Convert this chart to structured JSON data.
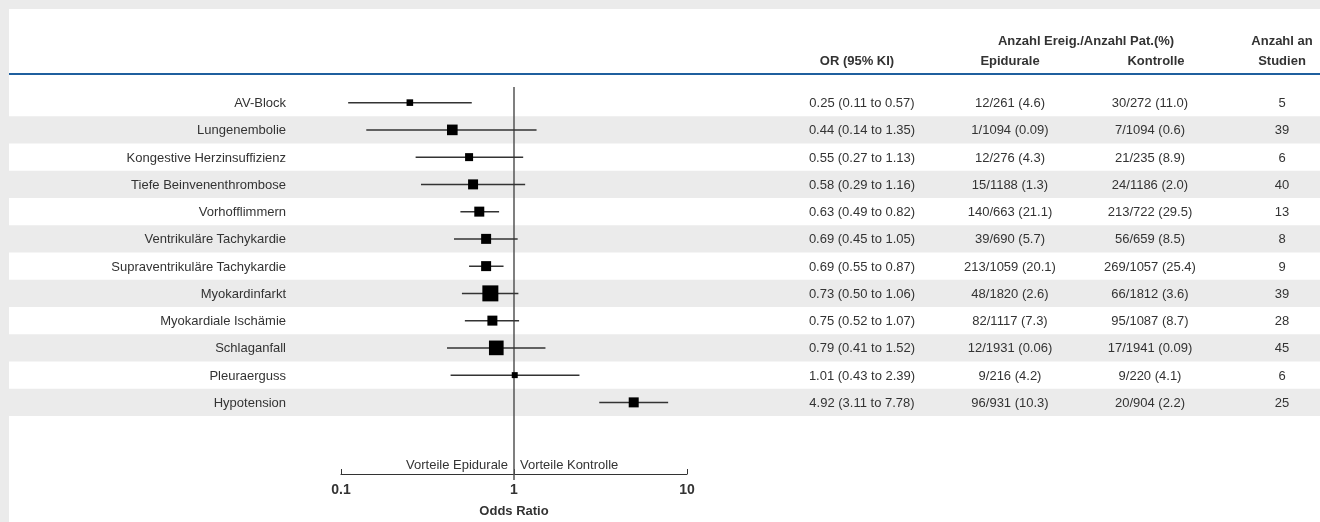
{
  "chart_data": {
    "type": "scatter",
    "orientation": "horizontal",
    "marker": "square",
    "color": "#000000",
    "log": "x",
    "xlim": [
      0.1,
      10
    ],
    "xticks": [
      0.1,
      1,
      10
    ],
    "xlabel": "Odds Ratio",
    "grid": false,
    "categories": [
      "AV-Block",
      "Lungenembolie",
      "Kongestive Herzinsuffizienz",
      "Tiefe Beinvenenthrombose",
      "Vorhofflimmern",
      "Ventrikuläre Tachykardie",
      "Supraventrikuläre Tachykardie",
      "Myokardinfarkt",
      "Myokardiale Ischämie",
      "Schlaganfall",
      "Pleuraerguss",
      "Hypotension"
    ],
    "values": [
      0.25,
      0.44,
      0.55,
      0.58,
      0.63,
      0.69,
      0.69,
      0.73,
      0.75,
      0.79,
      1.01,
      4.92
    ],
    "errors": [
      [
        0.11,
        0.57
      ],
      [
        0.14,
        1.35
      ],
      [
        0.27,
        1.13
      ],
      [
        0.29,
        1.16
      ],
      [
        0.49,
        0.82
      ],
      [
        0.45,
        1.05
      ],
      [
        0.55,
        0.87
      ],
      [
        0.5,
        1.06
      ],
      [
        0.52,
        1.07
      ],
      [
        0.41,
        1.52
      ],
      [
        0.43,
        2.39
      ],
      [
        3.11,
        7.78
      ]
    ],
    "sizes": [
      0.17,
      0.44,
      0.25,
      0.39,
      0.39,
      0.39,
      0.39,
      1,
      0.39,
      0.84,
      0.14,
      0.39
    ],
    "value_labels": [
      "0.25 (0.11 to 0.57)",
      "0.44 (0.14 to 1.35)",
      "0.55 (0.27 to 1.13)",
      "0.58 (0.29 to 1.16)",
      "0.63 (0.49 to 0.82)",
      "0.69 (0.45 to 1.05)",
      "0.69 (0.55 to 0.87)",
      "0.73 (0.50 to 1.06)",
      "0.75 (0.52 to 1.07)",
      "0.79 (0.41 to 1.52)",
      "1.01 (0.43 to 2.39)",
      "4.92 (3.11 to 7.78)"
    ],
    "ref_lines": [
      {
        "axis": "x",
        "value": 1
      }
    ],
    "annotations": [
      "OR (95% KI)",
      "Anzahl Ereig./Anzahl Pat.(%)",
      "Epidurale",
      "Kontrolle",
      "Anzahl an\nStudien",
      "Vorteile Epidurale",
      "Vorteile Kontrolle",
      "12/261 (4.6)",
      "30/272 (11.0)",
      "5",
      "1/1094 (0.09)",
      "7/1094 (0.6)",
      "39",
      "12/276 (4.3)",
      "21/235 (8.9)",
      "6",
      "15/1188 (1.3)",
      "24/1186 (2.0)",
      "40",
      "140/663 (21.1)",
      "213/722 (29.5)",
      "13",
      "39/690 (5.7)",
      "56/659 (8.5)",
      "8",
      "213/1059 (20.1)",
      "269/1057 (25.4)",
      "9",
      "48/1820 (2.6)",
      "66/1812 (3.6)",
      "39",
      "82/1117 (7.3)",
      "95/1087 (8.7)",
      "28",
      "12/1931 (0.06)",
      "17/1941 (0.09)",
      "45",
      "9/216 (4.2)",
      "9/220 (4.1)",
      "6",
      "96/931 (10.3)",
      "20/904 (2.2)",
      "25"
    ]
  }
}
